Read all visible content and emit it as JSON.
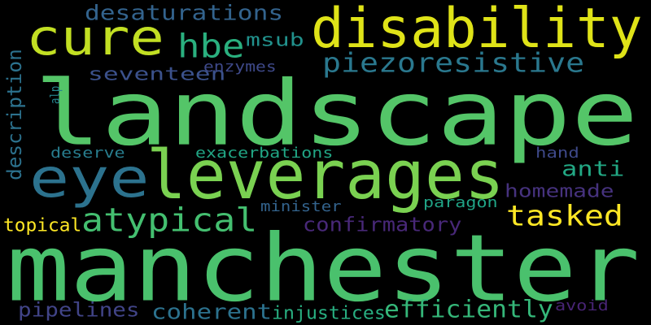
{
  "words": [
    {
      "text": "landscape",
      "color": "#54c568"
    },
    {
      "text": "manchester",
      "color": "#4ac16d"
    },
    {
      "text": "disability",
      "color": "#dfe318"
    },
    {
      "text": "leverages",
      "color": "#7ad151"
    },
    {
      "text": "cure",
      "color": "#c2df23"
    },
    {
      "text": "eye",
      "color": "#2c728e"
    },
    {
      "text": "hbe",
      "color": "#2ab07f"
    },
    {
      "text": "piezoresistive",
      "color": "#2a788e"
    },
    {
      "text": "atypical",
      "color": "#44bf70"
    },
    {
      "text": "tasked",
      "color": "#fde725"
    },
    {
      "text": "desaturations",
      "color": "#33638d"
    },
    {
      "text": "description",
      "color": "#2c728e"
    },
    {
      "text": "seventeen",
      "color": "#3b518b"
    },
    {
      "text": "msub",
      "color": "#21918c"
    },
    {
      "text": "enzymes",
      "color": "#3e4989"
    },
    {
      "text": "alp",
      "color": "#25858e"
    },
    {
      "text": "deserve",
      "color": "#287d8e"
    },
    {
      "text": "exacerbations",
      "color": "#21a685"
    },
    {
      "text": "hand",
      "color": "#3e4989"
    },
    {
      "text": "anti",
      "color": "#22a884"
    },
    {
      "text": "homemade",
      "color": "#46327e"
    },
    {
      "text": "minister",
      "color": "#33638d"
    },
    {
      "text": "paragon",
      "color": "#20a486"
    },
    {
      "text": "topical",
      "color": "#fde725"
    },
    {
      "text": "confirmatory",
      "color": "#482878"
    },
    {
      "text": "pipelines",
      "color": "#414487"
    },
    {
      "text": "coherent",
      "color": "#2c728e"
    },
    {
      "text": "injustices",
      "color": "#28ae80"
    },
    {
      "text": "efficiently",
      "color": "#35b779"
    },
    {
      "text": "avoid",
      "color": "#482475"
    }
  ]
}
